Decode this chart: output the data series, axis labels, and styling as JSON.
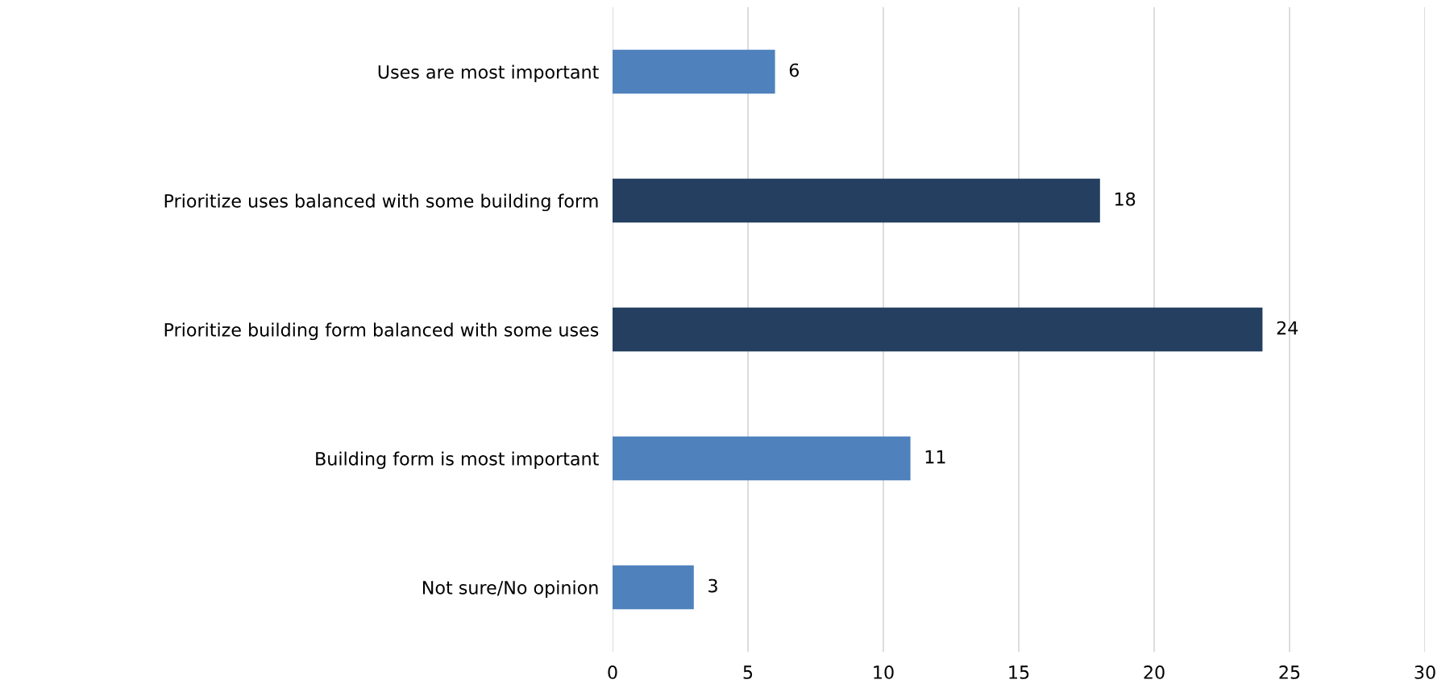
{
  "chart_data": {
    "type": "bar",
    "orientation": "horizontal",
    "categories": [
      "Uses are most important",
      "Prioritize uses balanced with some building form",
      "Prioritize building form balanced with some uses",
      "Building form is most important",
      "Not sure/No opinion"
    ],
    "values": [
      6,
      18,
      24,
      11,
      3
    ],
    "colors": [
      "#4f81bd",
      "#243f60",
      "#243f60",
      "#4f81bd",
      "#4f81bd"
    ],
    "xlim": [
      0,
      30
    ],
    "xticks": [
      0,
      5,
      10,
      15,
      20,
      25,
      30
    ],
    "grid": "x",
    "data_labels": true
  }
}
